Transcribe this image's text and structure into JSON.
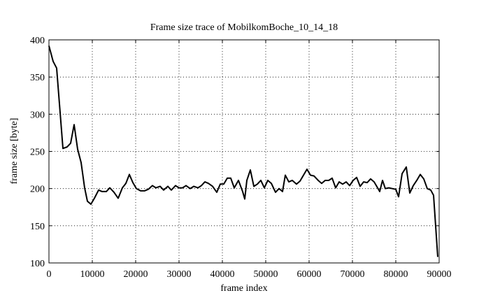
{
  "chart_data": {
    "type": "line",
    "title": "Frame size trace of MobilkomBoche_10_14_18",
    "xlabel": "frame index",
    "ylabel": "frame size [byte]",
    "xlim": [
      0,
      90000
    ],
    "xticks": [
      0,
      10000,
      20000,
      30000,
      40000,
      50000,
      60000,
      70000,
      80000,
      90000
    ],
    "ylim": [
      100,
      400
    ],
    "yticks": [
      100,
      150,
      200,
      250,
      300,
      350,
      400
    ],
    "grid": true,
    "series": [
      {
        "color": "#000000",
        "x": [
          0,
          968,
          1774,
          3226,
          4194,
          5000,
          5806,
          6613,
          7419,
          8226,
          8871,
          9677,
          10484,
          11452,
          12258,
          13226,
          14032,
          15000,
          15968,
          16935,
          17742,
          18548,
          19355,
          20161,
          21129,
          22097,
          22903,
          23871,
          24677,
          25645,
          26452,
          27419,
          28226,
          29194,
          30000,
          30806,
          31613,
          32581,
          33387,
          34355,
          35161,
          35968,
          36774,
          37742,
          38710,
          39516,
          40323,
          41129,
          41935,
          42742,
          43710,
          44677,
          45161,
          45645,
          46452,
          47258,
          48065,
          48871,
          49677,
          50484,
          51290,
          52258,
          53065,
          53871,
          54516,
          55323,
          56129,
          57097,
          57903,
          58710,
          59516,
          60323,
          61129,
          62097,
          62903,
          63710,
          64516,
          65323,
          66129,
          66935,
          67742,
          68548,
          69355,
          70161,
          70968,
          71774,
          72581,
          73387,
          74194,
          75000,
          75806,
          76290,
          76935,
          77581,
          78387,
          79194,
          80000,
          80645,
          81452,
          82419,
          83226,
          84032,
          84839,
          85645,
          86452,
          87258,
          88065,
          88710,
          89677
        ],
        "values": [
          392,
          371,
          362,
          254,
          256,
          261,
          286,
          253,
          235,
          201,
          183,
          179,
          187,
          198,
          196,
          196,
          201,
          195,
          187,
          201,
          207,
          219,
          208,
          200,
          197,
          197,
          199,
          204,
          201,
          203,
          198,
          203,
          198,
          204,
          201,
          201,
          204,
          200,
          203,
          201,
          204,
          209,
          207,
          203,
          195,
          206,
          206,
          214,
          214,
          201,
          211,
          196,
          186,
          211,
          225,
          203,
          206,
          211,
          201,
          211,
          207,
          195,
          200,
          196,
          218,
          209,
          211,
          206,
          210,
          218,
          226,
          218,
          217,
          211,
          207,
          211,
          211,
          214,
          201,
          209,
          206,
          209,
          204,
          211,
          215,
          203,
          209,
          208,
          213,
          209,
          201,
          196,
          211,
          200,
          201,
          200,
          199,
          189,
          220,
          229,
          194,
          204,
          211,
          219,
          213,
          200,
          198,
          191,
          108
        ]
      }
    ]
  }
}
